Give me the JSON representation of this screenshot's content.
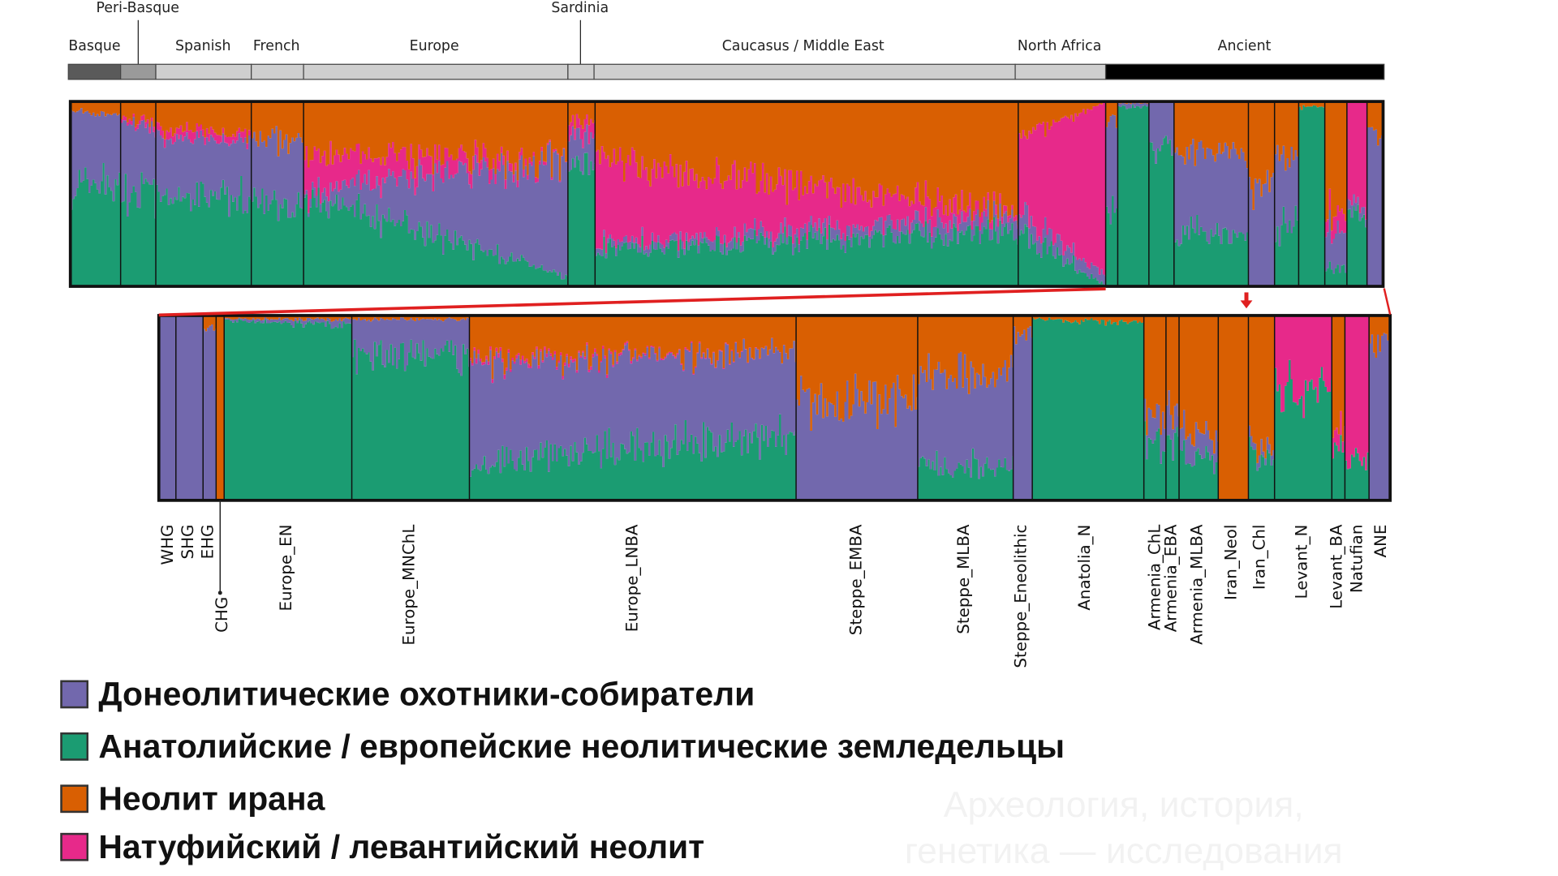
{
  "colors": {
    "hunter_gatherers": "#7268ad",
    "farmers": "#1b9c72",
    "iran_neolithic": "#d95f02",
    "natufian_levant": "#e7298a"
  },
  "header": {
    "callouts": [
      "Peri-Basque",
      "Sardinia"
    ],
    "regions": [
      "Basque",
      "Spanish",
      "French",
      "Europe",
      "Caucasus / Middle East",
      "North Africa",
      "Ancient"
    ]
  },
  "chart_data": [
    {
      "type": "stacked-bar",
      "component_order": [
        "farmers",
        "hunter_gatherers",
        "natufian_levant",
        "iran_neolithic"
      ],
      "groups": [
        {
          "label": "Basque",
          "start": [
            0.55,
            0.4,
            0.0,
            0.05
          ],
          "end": [
            0.55,
            0.38,
            0.0,
            0.07
          ]
        },
        {
          "label": "Peri-Basque",
          "start": [
            0.5,
            0.38,
            0.02,
            0.1
          ],
          "end": [
            0.5,
            0.35,
            0.03,
            0.12
          ]
        },
        {
          "label": "Spanish",
          "start": [
            0.5,
            0.3,
            0.05,
            0.15
          ],
          "end": [
            0.48,
            0.3,
            0.04,
            0.18
          ]
        },
        {
          "label": "French",
          "start": [
            0.45,
            0.35,
            0.0,
            0.2
          ],
          "end": [
            0.4,
            0.38,
            0.0,
            0.22
          ]
        },
        {
          "label": "Europe",
          "start": [
            0.5,
            0.02,
            0.2,
            0.28
          ],
          "end": [
            0.05,
            0.63,
            0.0,
            0.32
          ]
        },
        {
          "label": "Sardinia",
          "start": [
            0.68,
            0.15,
            0.07,
            0.1
          ],
          "end": [
            0.68,
            0.15,
            0.07,
            0.1
          ]
        },
        {
          "label": "Caucasus / Middle East",
          "start": [
            0.2,
            0.03,
            0.45,
            0.32
          ],
          "end": [
            0.3,
            0.08,
            0.02,
            0.6
          ]
        },
        {
          "label": "North Africa",
          "start": [
            0.3,
            0.1,
            0.4,
            0.2
          ],
          "end": [
            0.0,
            0.05,
            0.95,
            0.0
          ]
        },
        {
          "label": "Ancient",
          "start": [
            0.45,
            0.45,
            0.0,
            0.1
          ],
          "end": [
            0.45,
            0.45,
            0.0,
            0.1
          ]
        },
        {
          "label": "Ancient",
          "start": [
            0.97,
            0.02,
            0.0,
            0.01
          ],
          "end": [
            0.97,
            0.02,
            0.0,
            0.01
          ]
        },
        {
          "label": "Ancient",
          "start": [
            0.75,
            0.25,
            0.0,
            0.0
          ],
          "end": [
            0.75,
            0.25,
            0.0,
            0.0
          ]
        },
        {
          "label": "Ancient",
          "start": [
            0.3,
            0.45,
            0.0,
            0.25
          ],
          "end": [
            0.3,
            0.4,
            0.0,
            0.3
          ]
        },
        {
          "label": "Ancient",
          "start": [
            0.0,
            0.55,
            0.0,
            0.45
          ],
          "end": [
            0.0,
            0.55,
            0.0,
            0.45
          ]
        },
        {
          "label": "Ancient",
          "start": [
            0.3,
            0.4,
            0.0,
            0.3
          ],
          "end": [
            0.35,
            0.35,
            0.0,
            0.3
          ]
        },
        {
          "label": "Ancient",
          "start": [
            0.97,
            0.0,
            0.0,
            0.03
          ],
          "end": [
            0.97,
            0.0,
            0.0,
            0.03
          ]
        },
        {
          "label": "Ancient",
          "start": [
            0.1,
            0.2,
            0.1,
            0.6
          ],
          "end": [
            0.1,
            0.2,
            0.1,
            0.6
          ]
        },
        {
          "label": "Ancient",
          "start": [
            0.4,
            0.05,
            0.55,
            0.0
          ],
          "end": [
            0.4,
            0.05,
            0.55,
            0.0
          ]
        },
        {
          "label": "Ancient",
          "start": [
            0.0,
            0.85,
            0.0,
            0.15
          ],
          "end": [
            0.0,
            0.85,
            0.0,
            0.15
          ]
        }
      ]
    },
    {
      "type": "stacked-bar",
      "component_order": [
        "farmers",
        "hunter_gatherers",
        "natufian_levant",
        "iran_neolithic"
      ],
      "populations": [
        {
          "label": "WHG",
          "start": [
            0,
            1,
            0,
            0
          ],
          "end": [
            0,
            1,
            0,
            0
          ]
        },
        {
          "label": "SHG",
          "start": [
            0,
            1,
            0,
            0
          ],
          "end": [
            0,
            1,
            0,
            0
          ]
        },
        {
          "label": "EHG",
          "start": [
            0,
            0.93,
            0,
            0.07
          ],
          "end": [
            0,
            0.93,
            0,
            0.07
          ]
        },
        {
          "label": "CHG",
          "start": [
            0,
            0,
            0,
            1
          ],
          "end": [
            0,
            0,
            0,
            1
          ]
        },
        {
          "label": "Europe_EN",
          "start": [
            0.97,
            0.01,
            0,
            0.02
          ],
          "end": [
            0.95,
            0.03,
            0,
            0.02
          ]
        },
        {
          "label": "Europe_MNChL",
          "start": [
            0.8,
            0.18,
            0,
            0.02
          ],
          "end": [
            0.8,
            0.18,
            0,
            0.02
          ]
        },
        {
          "label": "Europe_LNBA",
          "start": [
            0.2,
            0.55,
            0.02,
            0.23
          ],
          "end": [
            0.35,
            0.45,
            0.0,
            0.2
          ]
        },
        {
          "label": "Steppe_EMBA",
          "start": [
            0.0,
            0.55,
            0,
            0.45
          ],
          "end": [
            0.0,
            0.53,
            0,
            0.47
          ]
        },
        {
          "label": "Steppe_MLBA",
          "start": [
            0.18,
            0.5,
            0,
            0.32
          ],
          "end": [
            0.18,
            0.5,
            0,
            0.32
          ]
        },
        {
          "label": "Steppe_Eneolithic",
          "start": [
            0,
            0.9,
            0,
            0.1
          ],
          "end": [
            0,
            0.9,
            0,
            0.1
          ]
        },
        {
          "label": "Anatolia_N",
          "start": [
            0.98,
            0,
            0,
            0.02
          ],
          "end": [
            0.96,
            0,
            0,
            0.04
          ]
        },
        {
          "label": "Armenia_ChL",
          "start": [
            0.3,
            0.15,
            0,
            0.55
          ],
          "end": [
            0.3,
            0.15,
            0,
            0.55
          ]
        },
        {
          "label": "Armenia_EBA",
          "start": [
            0.35,
            0.15,
            0,
            0.5
          ],
          "end": [
            0.35,
            0.15,
            0,
            0.5
          ]
        },
        {
          "label": "Armenia_MLBA",
          "start": [
            0.25,
            0.12,
            0,
            0.63
          ],
          "end": [
            0.22,
            0.12,
            0,
            0.66
          ]
        },
        {
          "label": "Iran_Neol",
          "start": [
            0,
            0,
            0,
            1
          ],
          "end": [
            0,
            0,
            0,
            1
          ]
        },
        {
          "label": "Iran_Chl",
          "start": [
            0.25,
            0.05,
            0,
            0.7
          ],
          "end": [
            0.25,
            0.05,
            0,
            0.7
          ]
        },
        {
          "label": "Levant_N",
          "start": [
            0.62,
            0,
            0.38,
            0
          ],
          "end": [
            0.6,
            0,
            0.4,
            0
          ]
        },
        {
          "label": "Levant_BA",
          "start": [
            0.3,
            0,
            0.1,
            0.6
          ],
          "end": [
            0.3,
            0,
            0.1,
            0.6
          ]
        },
        {
          "label": "Natufian",
          "start": [
            0.2,
            0,
            0.8,
            0
          ],
          "end": [
            0.2,
            0,
            0.8,
            0
          ]
        },
        {
          "label": "ANE",
          "start": [
            0,
            0.85,
            0,
            0.15
          ],
          "end": [
            0,
            0.85,
            0,
            0.15
          ]
        }
      ]
    }
  ],
  "legend": [
    {
      "label": "Донеолитические охотники-собиратели",
      "component": "hunter_gatherers"
    },
    {
      "label": "Анатолийские / европейские неолитические земледельцы",
      "component": "farmers"
    },
    {
      "label": "Неолит ирана",
      "component": "iran_neolithic"
    },
    {
      "label": "Натуфийский / левантийский неолит",
      "component": "natufian_levant"
    }
  ],
  "watermark": [
    "Археология, история,",
    "генетика — исследования"
  ]
}
